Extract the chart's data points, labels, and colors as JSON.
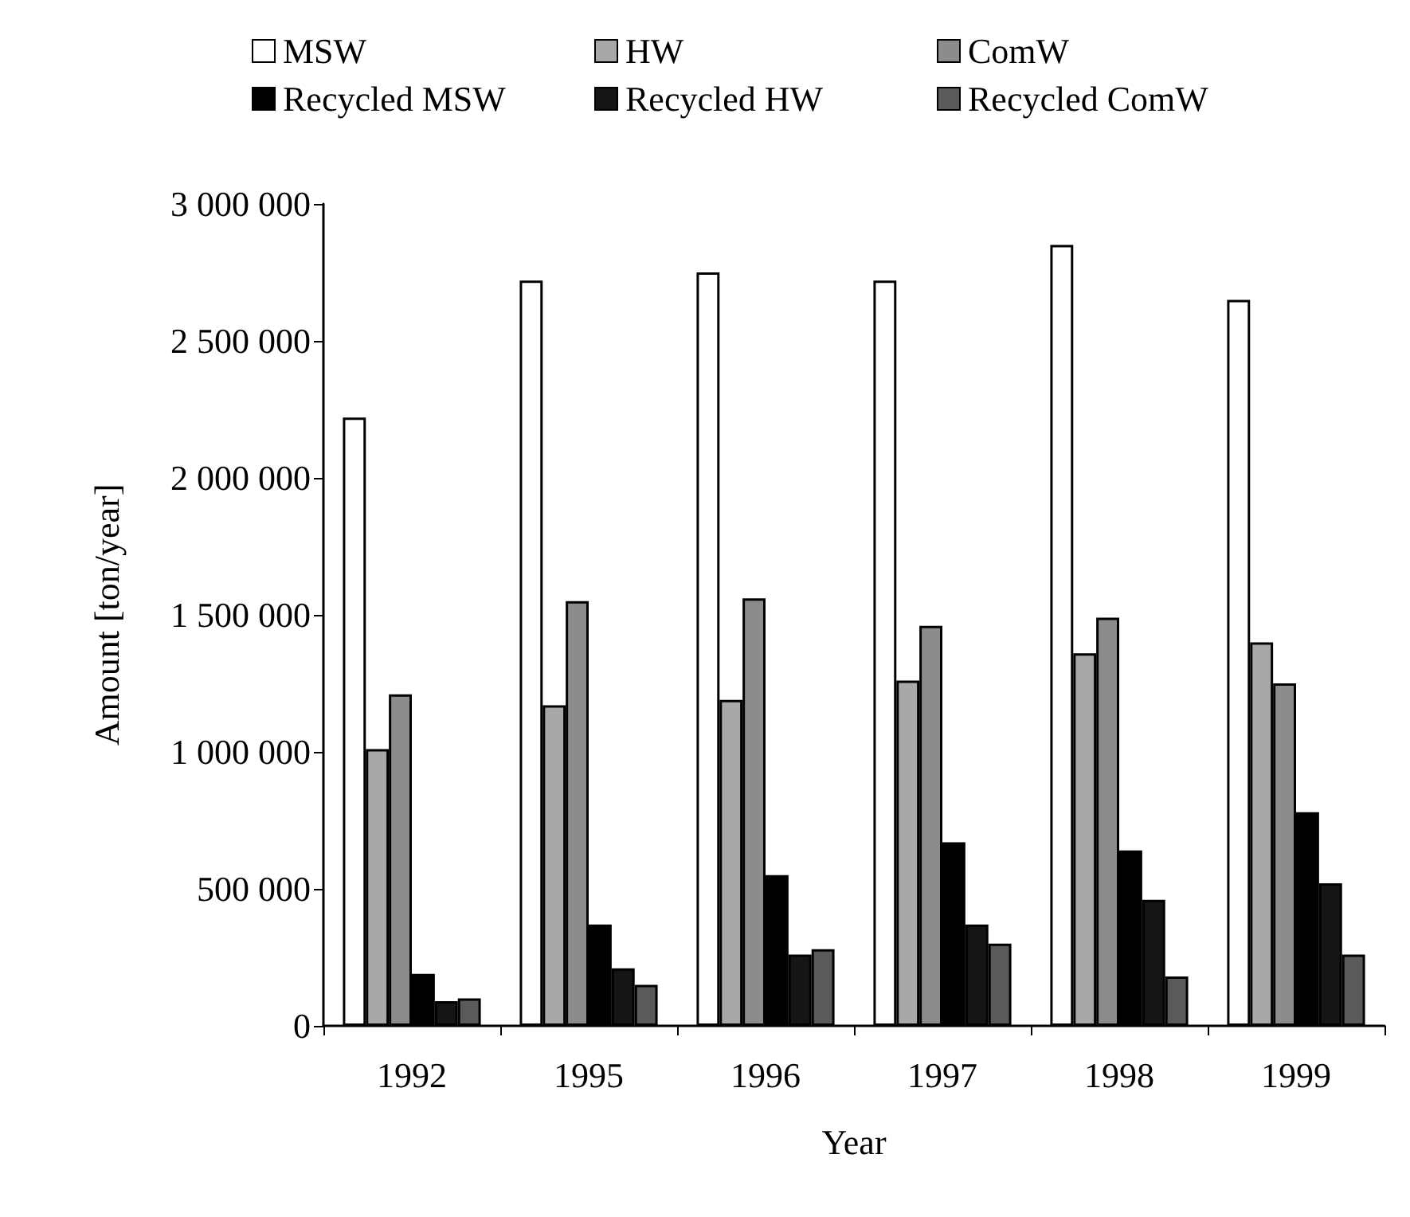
{
  "chart_data": {
    "type": "bar",
    "xlabel": "Year",
    "ylabel": "Amount [ton/year]",
    "categories": [
      "1992",
      "1995",
      "1996",
      "1997",
      "1998",
      "1999"
    ],
    "series": [
      {
        "name": "MSW",
        "color": "#ffffff",
        "values": [
          2220000,
          2720000,
          2750000,
          2720000,
          2850000,
          2650000
        ]
      },
      {
        "name": "HW",
        "color": "#a8a8a8",
        "values": [
          1010000,
          1170000,
          1190000,
          1260000,
          1360000,
          1400000
        ]
      },
      {
        "name": "ComW",
        "color": "#8c8c8c",
        "values": [
          1210000,
          1550000,
          1560000,
          1460000,
          1490000,
          1250000
        ]
      },
      {
        "name": "Recycled MSW",
        "color": "#000000",
        "values": [
          190000,
          370000,
          550000,
          670000,
          640000,
          780000
        ]
      },
      {
        "name": "Recycled HW",
        "color": "#151515",
        "values": [
          90000,
          210000,
          260000,
          370000,
          460000,
          520000
        ]
      },
      {
        "name": "Recycled ComW",
        "color": "#5a5a5a",
        "values": [
          100000,
          150000,
          280000,
          300000,
          180000,
          260000
        ]
      }
    ],
    "ylim": [
      0,
      3000000
    ],
    "yticks": [
      {
        "value": 0,
        "label": "0"
      },
      {
        "value": 500000,
        "label": "500 000"
      },
      {
        "value": 1000000,
        "label": "1 000 000"
      },
      {
        "value": 1500000,
        "label": "1 500 000"
      },
      {
        "value": 2000000,
        "label": "2 000 000"
      },
      {
        "value": 2500000,
        "label": "2 500 000"
      },
      {
        "value": 3000000,
        "label": "3 000 000"
      }
    ],
    "grid": false,
    "legend": "top"
  }
}
